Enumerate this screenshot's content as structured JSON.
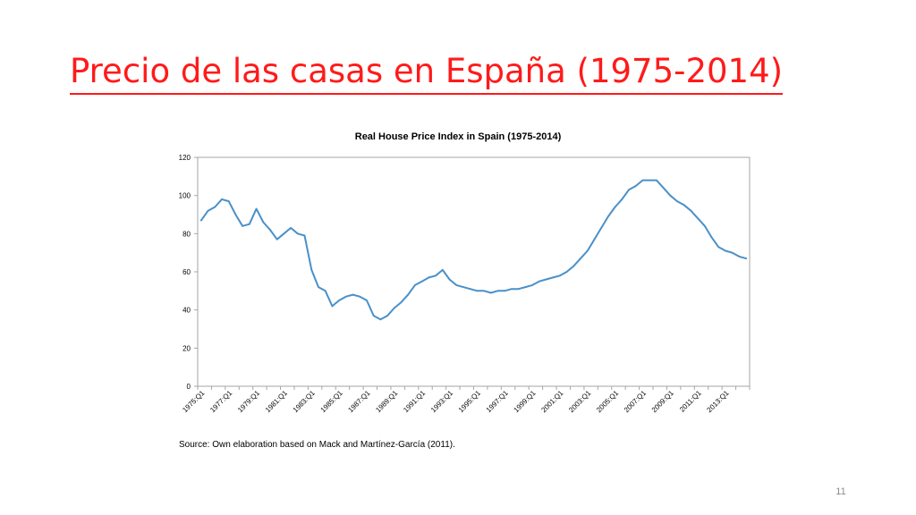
{
  "slide": {
    "title": "Precio de las casas en España (1975-2014)",
    "number": "11",
    "source_note": "Source: Own elaboration based on Mack and Martínez-García (2011).",
    "title_color": "#ff1a1a"
  },
  "chart_data": {
    "type": "line",
    "title": "Real House Price Index in Spain (1975-2014)",
    "xlabel": "",
    "ylabel": "",
    "ylim": [
      0,
      120
    ],
    "yticks": [
      0,
      20,
      40,
      60,
      80,
      100,
      120
    ],
    "grid": false,
    "legend": "none",
    "line_color": "#4a90c8",
    "x_tick_labels": [
      "1975:Q1",
      "1977:Q1",
      "1979:Q1",
      "1981:Q1",
      "1983:Q1",
      "1985:Q1",
      "1987:Q1",
      "1989:Q1",
      "1991:Q1",
      "1993:Q1",
      "1995:Q1",
      "1997:Q1",
      "1999:Q1",
      "2001:Q1",
      "2003:Q1",
      "2005:Q1",
      "2007:Q1",
      "2009:Q1",
      "2011:Q1",
      "2013:Q1"
    ],
    "x": [
      "1975:Q1",
      "1975:Q3",
      "1976:Q1",
      "1976:Q3",
      "1977:Q1",
      "1977:Q3",
      "1978:Q1",
      "1978:Q3",
      "1979:Q1",
      "1979:Q3",
      "1980:Q1",
      "1980:Q3",
      "1981:Q1",
      "1981:Q3",
      "1982:Q1",
      "1982:Q3",
      "1983:Q1",
      "1983:Q3",
      "1984:Q1",
      "1984:Q3",
      "1985:Q1",
      "1985:Q3",
      "1986:Q1",
      "1986:Q3",
      "1987:Q1",
      "1987:Q3",
      "1988:Q1",
      "1988:Q3",
      "1989:Q1",
      "1989:Q3",
      "1990:Q1",
      "1990:Q3",
      "1991:Q1",
      "1991:Q3",
      "1992:Q1",
      "1992:Q3",
      "1993:Q1",
      "1993:Q3",
      "1994:Q1",
      "1994:Q3",
      "1995:Q1",
      "1995:Q3",
      "1996:Q1",
      "1996:Q3",
      "1997:Q1",
      "1997:Q3",
      "1998:Q1",
      "1998:Q3",
      "1999:Q1",
      "1999:Q3",
      "2000:Q1",
      "2000:Q3",
      "2001:Q1",
      "2001:Q3",
      "2002:Q1",
      "2002:Q3",
      "2003:Q1",
      "2003:Q3",
      "2004:Q1",
      "2004:Q3",
      "2005:Q1",
      "2005:Q3",
      "2006:Q1",
      "2006:Q3",
      "2007:Q1",
      "2007:Q3",
      "2008:Q1",
      "2008:Q3",
      "2009:Q1",
      "2009:Q3",
      "2010:Q1",
      "2010:Q3",
      "2011:Q1",
      "2011:Q3",
      "2012:Q1",
      "2012:Q3",
      "2013:Q1",
      "2013:Q3",
      "2014:Q1",
      "2014:Q3"
    ],
    "series": [
      {
        "values": [
          87,
          92,
          94,
          98,
          97,
          90,
          84,
          85,
          93,
          86,
          82,
          77,
          80,
          83,
          80,
          79,
          61,
          52,
          50,
          42,
          45,
          47,
          48,
          47,
          45,
          37,
          35,
          37,
          41,
          44,
          48,
          53,
          55,
          57,
          58,
          61,
          56,
          53,
          52,
          51,
          50,
          50,
          49,
          50,
          50,
          51,
          51,
          52,
          53,
          55,
          56,
          57,
          58,
          60,
          63,
          67,
          71,
          77,
          83,
          89,
          94,
          98,
          103,
          105,
          108,
          108,
          108,
          104,
          100,
          97,
          95,
          92,
          88,
          84,
          78,
          73,
          71,
          70,
          68,
          67
        ]
      }
    ]
  }
}
